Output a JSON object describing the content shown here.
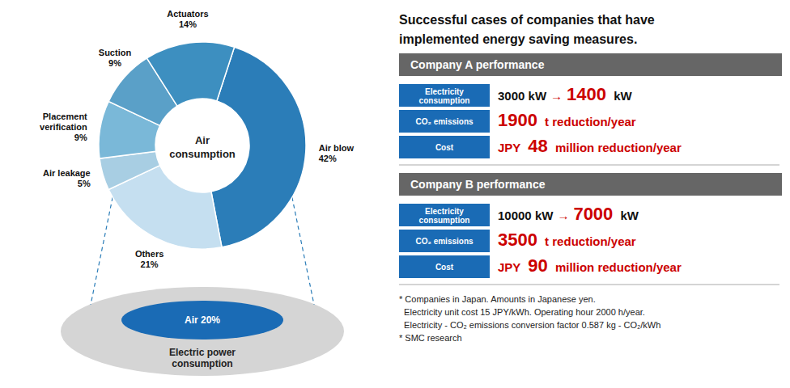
{
  "chart_data": {
    "type": "pie",
    "title": "Successful cases of companies that have\nimplemented energy saving measures.",
    "categories": [
      "Air blow",
      "Others",
      "Air leakage",
      "Placement\nverification",
      "Suction",
      "Actuators"
    ],
    "values": [
      42,
      21,
      5,
      9,
      9,
      14
    ],
    "value_labels": [
      "42%",
      "21%",
      "5%",
      "9%",
      "9%",
      "14%"
    ],
    "colors": [
      "#2b7db8",
      "#c5dff0",
      "#a8cee3",
      "#7ab8d8",
      "#5aa0c8",
      "#3d8fc0"
    ],
    "data_labels": true,
    "annotations": {
      "center": [
        "Air",
        "consumption"
      ],
      "electric": [
        "Air 20%",
        "Electric power\nconsumption"
      ],
      "panels": [
        {
          "header": "Company A performance",
          "color": "#666666",
          "rows": [
            {
              "label": "Electricity\nconsumption",
              "color": "#1a6bb5",
              "parts": [
                {
                  "text": "3000 kW"
                },
                {
                  "text": "→",
                  "color": "#cc0000"
                },
                {
                  "text": "1400",
                  "color": "#cc0000"
                },
                {
                  "text": " kW"
                }
              ]
            },
            {
              "label": "CO₂ emissions",
              "color": "#1a6bb5",
              "parts": [
                {
                  "text": "1900",
                  "color": "#cc0000"
                },
                {
                  "text": " t reduction/year",
                  "color": "#cc0000"
                }
              ]
            },
            {
              "label": "Cost",
              "color": "#1a6bb5",
              "parts": [
                {
                  "text": "JPY ",
                  "color": "#cc0000"
                },
                {
                  "text": "48",
                  "color": "#cc0000"
                },
                {
                  "text": " million reduction/year",
                  "color": "#cc0000"
                }
              ]
            }
          ]
        },
        {
          "header": "Company B performance",
          "color": "#666666",
          "rows": [
            {
              "label": "Electricity\nconsumption",
              "color": "#1a6bb5",
              "parts": [
                {
                  "text": "10000 kW"
                },
                {
                  "text": "→",
                  "color": "#cc0000"
                },
                {
                  "text": "7000",
                  "color": "#cc0000"
                },
                {
                  "text": " kW"
                }
              ]
            },
            {
              "label": "CO₂ emissions",
              "color": "#1a6bb5",
              "parts": [
                {
                  "text": "3500",
                  "color": "#cc0000"
                },
                {
                  "text": " t reduction/year",
                  "color": "#cc0000"
                }
              ]
            },
            {
              "label": "Cost",
              "color": "#1a6bb5",
              "parts": [
                {
                  "text": "JPY ",
                  "color": "#cc0000"
                },
                {
                  "text": "90",
                  "color": "#cc0000"
                },
                {
                  "text": " million reduction/year",
                  "color": "#cc0000"
                }
              ]
            }
          ]
        }
      ],
      "footnotes": [
        "* Companies in Japan. Amounts in Japanese yen.",
        "  Electricity unit cost 15 JPY/kWh. Operating hour 2000 h/year.",
        "  Electricity - CO₂ emissions conversion factor 0.587 kg - CO₂/kWh",
        "* SMC research"
      ]
    }
  }
}
